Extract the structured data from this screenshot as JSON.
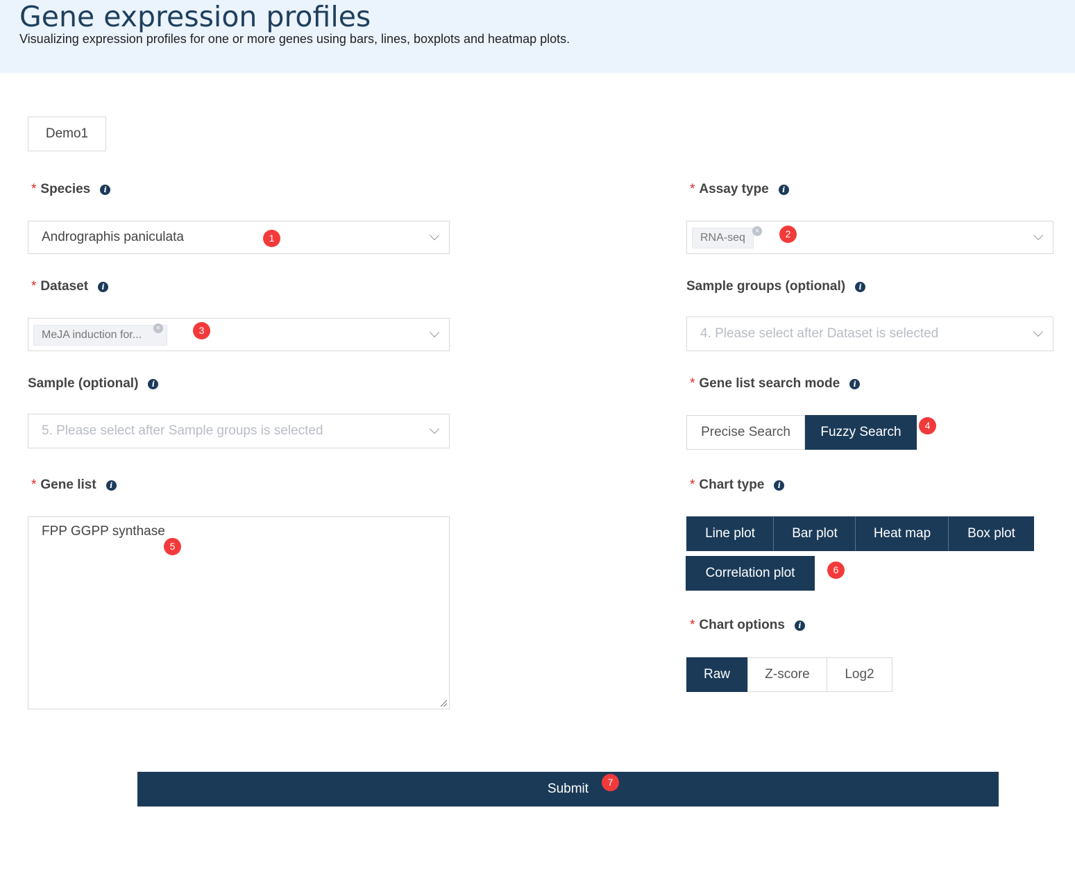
{
  "header": {
    "title": "Gene expression profiles",
    "subtitle": "Visualizing expression profiles for one or more genes using bars, lines, boxplots and heatmap plots."
  },
  "demo": {
    "label": "Demo1"
  },
  "required_mark": "*",
  "info_glyph": "i",
  "species": {
    "label": "Species",
    "value": "Andrographis paniculata",
    "badge": "1"
  },
  "assay_type": {
    "label": "Assay type",
    "tag": "RNA-seq",
    "badge": "2"
  },
  "dataset": {
    "label": "Dataset",
    "tag": "MeJA induction for...",
    "badge": "3"
  },
  "sample_groups": {
    "label": "Sample groups (optional)",
    "placeholder": "4. Please select after Dataset is selected"
  },
  "sample": {
    "label": "Sample (optional)",
    "placeholder": "5. Please select after Sample groups is selected"
  },
  "search_mode": {
    "label": "Gene list search mode",
    "options": [
      "Precise Search",
      "Fuzzy Search"
    ],
    "selected": "Fuzzy Search",
    "badge": "4"
  },
  "gene_list": {
    "label": "Gene list",
    "value": "FPP GGPP synthase",
    "badge": "5"
  },
  "chart_type": {
    "label": "Chart type",
    "options": [
      "Line plot",
      "Bar plot",
      "Heat map",
      "Box plot",
      "Correlation plot"
    ],
    "badge": "6"
  },
  "chart_options": {
    "label": "Chart options",
    "options": [
      "Raw",
      "Z-score",
      "Log2"
    ],
    "selected": "Raw"
  },
  "submit": {
    "label": "Submit",
    "badge": "7"
  },
  "tag_remove_glyph": "×",
  "colors": {
    "primary": "#1b3a58",
    "required": "#e3261f",
    "badge": "#f33a3a",
    "header_bg": "#ebf3fd"
  }
}
